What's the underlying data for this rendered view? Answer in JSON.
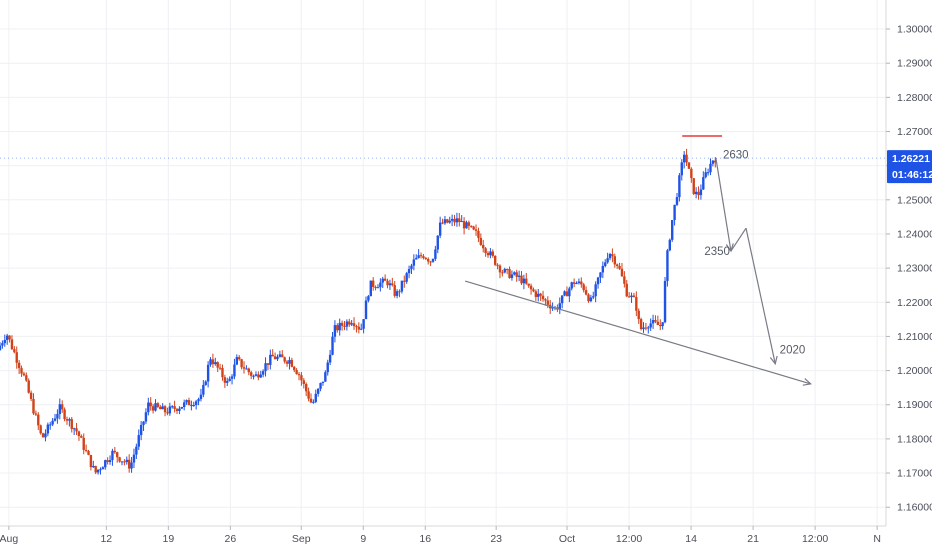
{
  "chart_data": {
    "type": "candlestick",
    "title": "",
    "xlabel": "",
    "ylabel": "",
    "ylim": [
      1.1545,
      1.3085
    ],
    "x_range": [
      0,
      100
    ],
    "y_ticks": [
      "1.16000",
      "1.17000",
      "1.18000",
      "1.19000",
      "1.20000",
      "1.21000",
      "1.22000",
      "1.23000",
      "1.24000",
      "1.25000",
      "1.26000",
      "1.27000",
      "1.28000",
      "1.29000",
      "1.30000"
    ],
    "x_ticks": [
      {
        "label": "Aug",
        "x": 1
      },
      {
        "label": "12",
        "x": 12
      },
      {
        "label": "19",
        "x": 19
      },
      {
        "label": "26",
        "x": 26
      },
      {
        "label": "Sep",
        "x": 34
      },
      {
        "label": "9",
        "x": 41
      },
      {
        "label": "16",
        "x": 48
      },
      {
        "label": "23",
        "x": 56
      },
      {
        "label": "Oct",
        "x": 64
      },
      {
        "label": "12:00",
        "x": 71
      },
      {
        "label": "14",
        "x": 78
      },
      {
        "label": "21",
        "x": 85
      },
      {
        "label": "12:00",
        "x": 92
      },
      {
        "label": "N",
        "x": 99
      }
    ],
    "colors": {
      "up": "#1e53e5",
      "down": "#d1421a",
      "annotation": "#787b86",
      "resistance": "#e53935",
      "badge": "#1e53e5"
    },
    "price_path": [
      [
        0,
        1.206
      ],
      [
        1,
        1.211
      ],
      [
        3,
        1.198
      ],
      [
        5,
        1.18
      ],
      [
        7,
        1.189
      ],
      [
        9,
        1.182
      ],
      [
        11,
        1.17
      ],
      [
        13,
        1.176
      ],
      [
        15,
        1.172
      ],
      [
        17,
        1.19
      ],
      [
        19,
        1.188
      ],
      [
        21,
        1.19
      ],
      [
        23,
        1.192
      ],
      [
        24,
        1.204
      ],
      [
        26,
        1.196
      ],
      [
        27,
        1.203
      ],
      [
        29,
        1.198
      ],
      [
        31,
        1.204
      ],
      [
        33,
        1.203
      ],
      [
        34,
        1.199
      ],
      [
        35.5,
        1.19
      ],
      [
        37,
        1.199
      ],
      [
        38,
        1.212
      ],
      [
        40,
        1.215
      ],
      [
        41,
        1.212
      ],
      [
        42,
        1.225
      ],
      [
        44,
        1.226
      ],
      [
        45,
        1.222
      ],
      [
        47,
        1.232
      ],
      [
        48,
        1.234
      ],
      [
        49,
        1.232
      ],
      [
        50,
        1.243
      ],
      [
        52,
        1.244
      ],
      [
        53,
        1.242
      ],
      [
        54,
        1.24
      ],
      [
        55,
        1.236
      ],
      [
        57,
        1.229
      ],
      [
        59,
        1.227
      ],
      [
        60,
        1.224
      ],
      [
        62,
        1.22
      ],
      [
        63,
        1.218
      ],
      [
        65,
        1.226
      ],
      [
        66,
        1.225
      ],
      [
        67,
        1.22
      ],
      [
        68,
        1.228
      ],
      [
        69,
        1.235
      ],
      [
        70,
        1.231
      ],
      [
        71,
        1.223
      ],
      [
        72,
        1.22
      ],
      [
        72.5,
        1.212
      ],
      [
        73.5,
        1.214
      ],
      [
        75,
        1.213
      ],
      [
        75.5,
        1.232
      ],
      [
        76,
        1.242
      ],
      [
        77.5,
        1.264
      ],
      [
        78.5,
        1.253
      ],
      [
        79,
        1.251
      ],
      [
        80,
        1.258
      ],
      [
        80.8,
        1.2622
      ]
    ],
    "current_price": "1.26221",
    "countdown": "01:46:12",
    "resistance": {
      "x_start": 77,
      "x_end": 81.5,
      "y": 1.2687
    },
    "trendline": {
      "start": [
        52.5,
        1.2262
      ],
      "end": [
        91.5,
        1.1961
      ]
    },
    "projection_path": [
      [
        80.8,
        1.2622
      ],
      [
        82.5,
        1.235
      ],
      [
        84.2,
        1.2417
      ],
      [
        87.5,
        1.202
      ]
    ],
    "annotations": [
      {
        "text": "2630",
        "x": 81.6,
        "y": 1.2633
      },
      {
        "text": "2350",
        "x": 79.5,
        "y": 1.235
      },
      {
        "text": "2020",
        "x": 88,
        "y": 1.2062
      }
    ]
  }
}
